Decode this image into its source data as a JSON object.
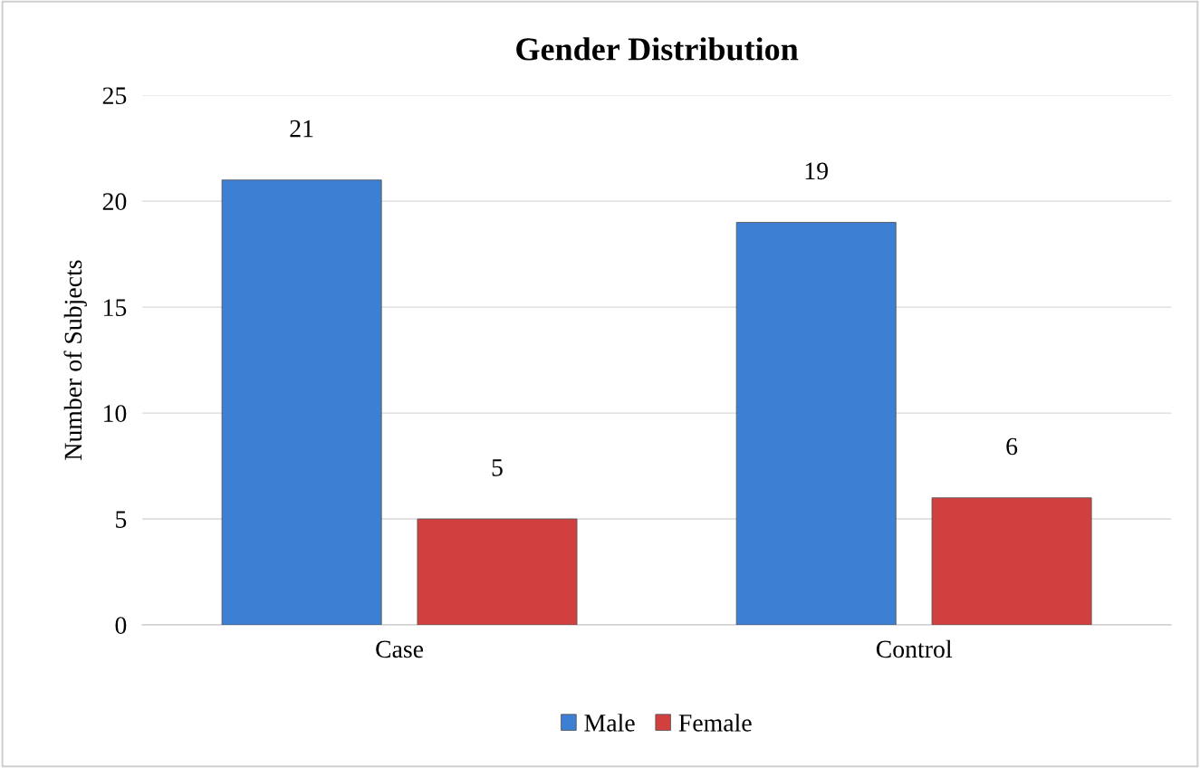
{
  "chart_data": {
    "type": "bar",
    "title": "Gender Distribution",
    "ylabel": "Number of Subjects",
    "categories": [
      "Case",
      "Control"
    ],
    "series": [
      {
        "name": "Male",
        "color": "#3d7fd2",
        "values": [
          21,
          19
        ]
      },
      {
        "name": "Female",
        "color": "#d23f3f",
        "values": [
          5,
          6
        ]
      }
    ],
    "ylim": [
      0,
      25
    ],
    "yticks": [
      0,
      5,
      10,
      15,
      20,
      25
    ],
    "grid": "y",
    "legend": "bottom",
    "data_labels": true
  }
}
